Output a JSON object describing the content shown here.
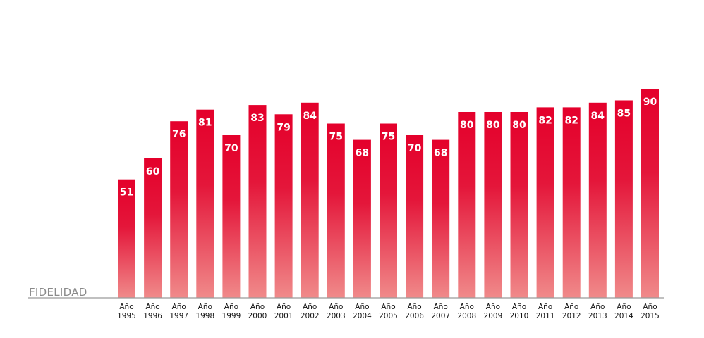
{
  "chart_data": {
    "type": "bar",
    "ylabel": "FIDELIDAD",
    "categories": [
      [
        "Año",
        "1995"
      ],
      [
        "Año",
        "1996"
      ],
      [
        "Año",
        "1997"
      ],
      [
        "Año",
        "1998"
      ],
      [
        "Año",
        "1999"
      ],
      [
        "Año",
        "2000"
      ],
      [
        "Año",
        "2001"
      ],
      [
        "Año",
        "2002"
      ],
      [
        "Año",
        "2003"
      ],
      [
        "Año",
        "2004"
      ],
      [
        "Año",
        "2005"
      ],
      [
        "Año",
        "2006"
      ],
      [
        "Año",
        "2007"
      ],
      [
        "Año",
        "2008"
      ],
      [
        "Año",
        "2009"
      ],
      [
        "Año",
        "2010"
      ],
      [
        "Año",
        "2011"
      ],
      [
        "Año",
        "2012"
      ],
      [
        "Año",
        "2013"
      ],
      [
        "Año",
        "2014"
      ],
      [
        "Año",
        "2015"
      ]
    ],
    "values": [
      51,
      60,
      76,
      81,
      70,
      83,
      79,
      84,
      75,
      68,
      75,
      70,
      68,
      80,
      80,
      80,
      82,
      82,
      84,
      85,
      90
    ],
    "ylim": [
      0,
      100
    ],
    "grid": false,
    "colors": {
      "bar_top": "#e4002b",
      "bar_bottom": "#f08a8a",
      "value_text": "#ffffff",
      "baseline": "#9a9a9a"
    }
  }
}
